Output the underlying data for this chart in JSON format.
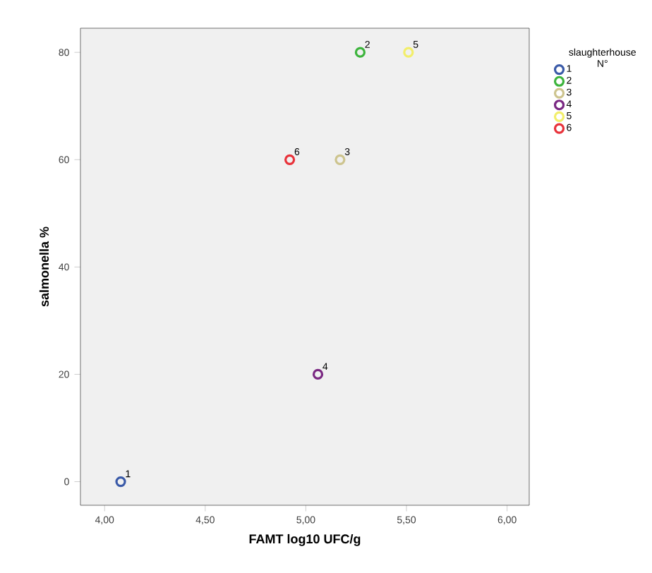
{
  "chart_data": {
    "type": "scatter",
    "xlabel": "FAMT log10 UFC/g",
    "ylabel": "salmonella %",
    "legend_title": "slaughterhouse N°",
    "legend": "right",
    "marker": "circle",
    "xlim": [
      3.88,
      6.11
    ],
    "ylim": [
      -4.4,
      84.5
    ],
    "xticks": [
      {
        "value": 4,
        "label": "4,00"
      },
      {
        "value": 4.5,
        "label": "4,50"
      },
      {
        "value": 5,
        "label": "5,00"
      },
      {
        "value": 5.5,
        "label": "5,50"
      },
      {
        "value": 6,
        "label": "6,00"
      }
    ],
    "yticks": [
      0,
      20,
      40,
      60,
      80
    ],
    "series": [
      {
        "name": "1",
        "color": "#3a5aa8",
        "x": [
          4.08
        ],
        "values": [
          0
        ]
      },
      {
        "name": "2",
        "color": "#3cb43c",
        "x": [
          5.27
        ],
        "values": [
          80
        ]
      },
      {
        "name": "3",
        "color": "#cdc48e",
        "x": [
          5.17
        ],
        "values": [
          60
        ]
      },
      {
        "name": "4",
        "color": "#7a2882",
        "x": [
          5.06
        ],
        "values": [
          20
        ]
      },
      {
        "name": "5",
        "color": "#f2ee6a",
        "x": [
          5.51
        ],
        "values": [
          80
        ]
      },
      {
        "name": "6",
        "color": "#e8323a",
        "x": [
          4.92
        ],
        "values": [
          60
        ]
      }
    ]
  }
}
